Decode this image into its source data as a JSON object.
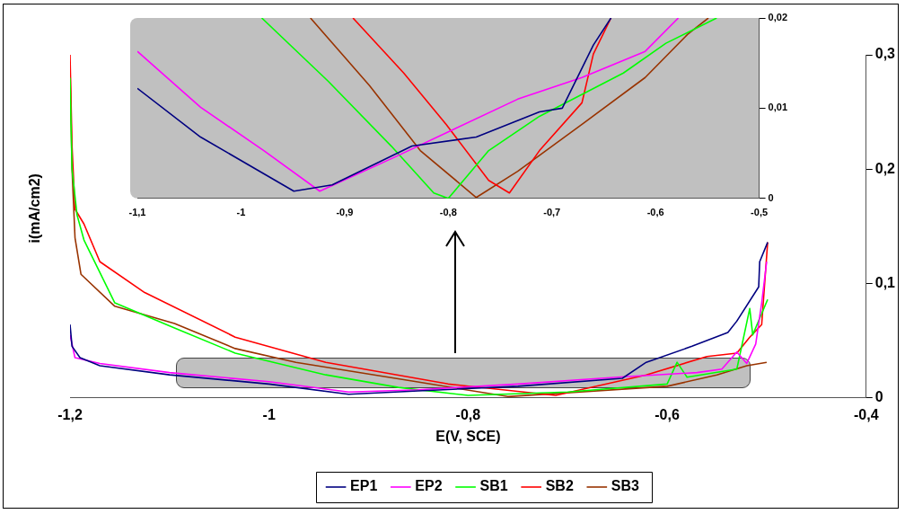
{
  "chart_data": [
    {
      "type": "line",
      "xlabel": "E(V, SCE)",
      "ylabel": "i(mA/cm2)",
      "legend": "bottom",
      "marker": "none",
      "xlim": [
        -1.2,
        -0.4
      ],
      "xticks": [
        {
          "value": -1.2,
          "label": "-1,2"
        },
        -1,
        {
          "value": -0.8,
          "label": "-0,8"
        },
        {
          "value": -0.6,
          "label": "-0,6"
        },
        {
          "value": -0.4,
          "label": "-0,4"
        }
      ],
      "ylim": [
        0,
        0.3
      ],
      "yticks": [
        0,
        {
          "value": 0.1,
          "label": "0,1"
        },
        {
          "value": 0.2,
          "label": "0,2"
        },
        {
          "value": 0.3,
          "label": "0,3"
        }
      ],
      "series": [
        {
          "name": "EP1",
          "color": "#000080",
          "x": [
            -1.2,
            -1.198,
            -1.19,
            -1.17,
            -1.1,
            -1.0,
            -0.92,
            -0.85,
            -0.75,
            -0.645,
            -0.621,
            -0.575,
            -0.539,
            -0.53,
            -0.508,
            -0.507,
            -0.499
          ],
          "values": [
            0.064,
            0.045,
            0.035,
            0.028,
            0.02,
            0.012,
            0.003,
            0.006,
            0.01,
            0.017,
            0.031,
            0.045,
            0.057,
            0.067,
            0.097,
            0.119,
            0.136
          ]
        },
        {
          "name": "EP2",
          "color": "#ff00ff",
          "x": [
            -1.2,
            -1.195,
            -1.17,
            -1.1,
            -1.0,
            -0.92,
            -0.85,
            -0.75,
            -0.65,
            -0.57,
            -0.545,
            -0.53,
            -0.52,
            -0.511,
            -0.505,
            -0.5
          ],
          "values": [
            0.055,
            0.035,
            0.03,
            0.022,
            0.014,
            0.005,
            0.007,
            0.012,
            0.018,
            0.022,
            0.025,
            0.04,
            0.03,
            0.047,
            0.083,
            0.119
          ]
        },
        {
          "name": "SB1",
          "color": "#00ff00",
          "x": [
            -1.2,
            -1.198,
            -1.193,
            -1.186,
            -1.155,
            -1.095,
            -1.034,
            -0.943,
            -0.87,
            -0.8,
            -0.7,
            -0.6,
            -0.59,
            -0.58,
            -0.53,
            -0.517,
            -0.514,
            -0.499
          ],
          "values": [
            0.28,
            0.2,
            0.16,
            0.138,
            0.083,
            0.061,
            0.039,
            0.02,
            0.009,
            0.002,
            0.005,
            0.012,
            0.031,
            0.018,
            0.025,
            0.078,
            0.055,
            0.086
          ]
        },
        {
          "name": "SB2",
          "color": "#ff0000",
          "x": [
            -1.2,
            -1.198,
            -1.195,
            -1.186,
            -1.17,
            -1.125,
            -1.034,
            -0.943,
            -0.82,
            -0.712,
            -0.621,
            -0.56,
            -0.53,
            -0.517,
            -0.505,
            -0.499
          ],
          "values": [
            0.3,
            0.22,
            0.165,
            0.152,
            0.119,
            0.092,
            0.053,
            0.031,
            0.012,
            0.002,
            0.02,
            0.036,
            0.039,
            0.053,
            0.064,
            0.136
          ]
        },
        {
          "name": "SB3",
          "color": "#993300",
          "x": [
            -1.2,
            -1.198,
            -1.195,
            -1.189,
            -1.155,
            -1.095,
            -1.034,
            -0.973,
            -0.852,
            -0.76,
            -0.6,
            -0.55,
            -0.52,
            -0.5
          ],
          "values": [
            0.29,
            0.2,
            0.14,
            0.108,
            0.08,
            0.065,
            0.043,
            0.031,
            0.014,
            0.001,
            0.01,
            0.02,
            0.028,
            0.031
          ]
        }
      ]
    },
    {
      "type": "line",
      "marker": "none",
      "xlim": [
        -1.1,
        -0.5
      ],
      "xticks": [
        {
          "value": -1.1,
          "label": "-1,1"
        },
        -1,
        {
          "value": -0.9,
          "label": "-0,9"
        },
        {
          "value": -0.8,
          "label": "-0,8"
        },
        {
          "value": -0.7,
          "label": "-0,7"
        },
        {
          "value": -0.6,
          "label": "-0,6"
        },
        {
          "value": -0.5,
          "label": "-0,5"
        }
      ],
      "ylim": [
        0,
        0.02
      ],
      "yticks": [
        0,
        {
          "value": 0.01,
          "label": "0,01"
        },
        {
          "value": 0.02,
          "label": "0,02"
        }
      ],
      "series": [
        {
          "color": "#000080",
          "x": [
            -1.1,
            -1.039,
            -0.949,
            -0.912,
            -0.835,
            -0.773,
            -0.712,
            -0.69,
            -0.66,
            -0.643
          ],
          "values": [
            0.0122,
            0.0068,
            0.0008,
            0.0015,
            0.0058,
            0.0068,
            0.0096,
            0.01,
            0.017,
            0.02
          ]
        },
        {
          "color": "#ff00ff",
          "x": [
            -1.1,
            -1.039,
            -0.978,
            -0.924,
            -0.855,
            -0.794,
            -0.733,
            -0.671,
            -0.61,
            -0.578
          ],
          "values": [
            0.0163,
            0.0101,
            0.0053,
            0.0008,
            0.0044,
            0.0077,
            0.011,
            0.0134,
            0.0163,
            0.02
          ]
        },
        {
          "color": "#00ff00",
          "x": [
            -0.98,
            -0.916,
            -0.855,
            -0.814,
            -0.8,
            -0.761,
            -0.712,
            -0.631,
            -0.59,
            -0.541
          ],
          "values": [
            0.02,
            0.013,
            0.0058,
            0.0006,
            0,
            0.0053,
            0.0091,
            0.0139,
            0.0172,
            0.02
          ]
        },
        {
          "color": "#ff0000",
          "x": [
            -0.892,
            -0.843,
            -0.802,
            -0.761,
            -0.741,
            -0.712,
            -0.671,
            -0.66,
            -0.643
          ],
          "values": [
            0.02,
            0.0139,
            0.0082,
            0.002,
            0.0006,
            0.0053,
            0.0106,
            0.016,
            0.02
          ]
        },
        {
          "color": "#993300",
          "x": [
            -0.933,
            -0.876,
            -0.827,
            -0.773,
            -0.733,
            -0.671,
            -0.61,
            -0.569,
            -0.549
          ],
          "values": [
            0.02,
            0.0125,
            0.0053,
            0.0001,
            0.003,
            0.0082,
            0.0134,
            0.0182,
            0.02
          ]
        }
      ]
    }
  ]
}
